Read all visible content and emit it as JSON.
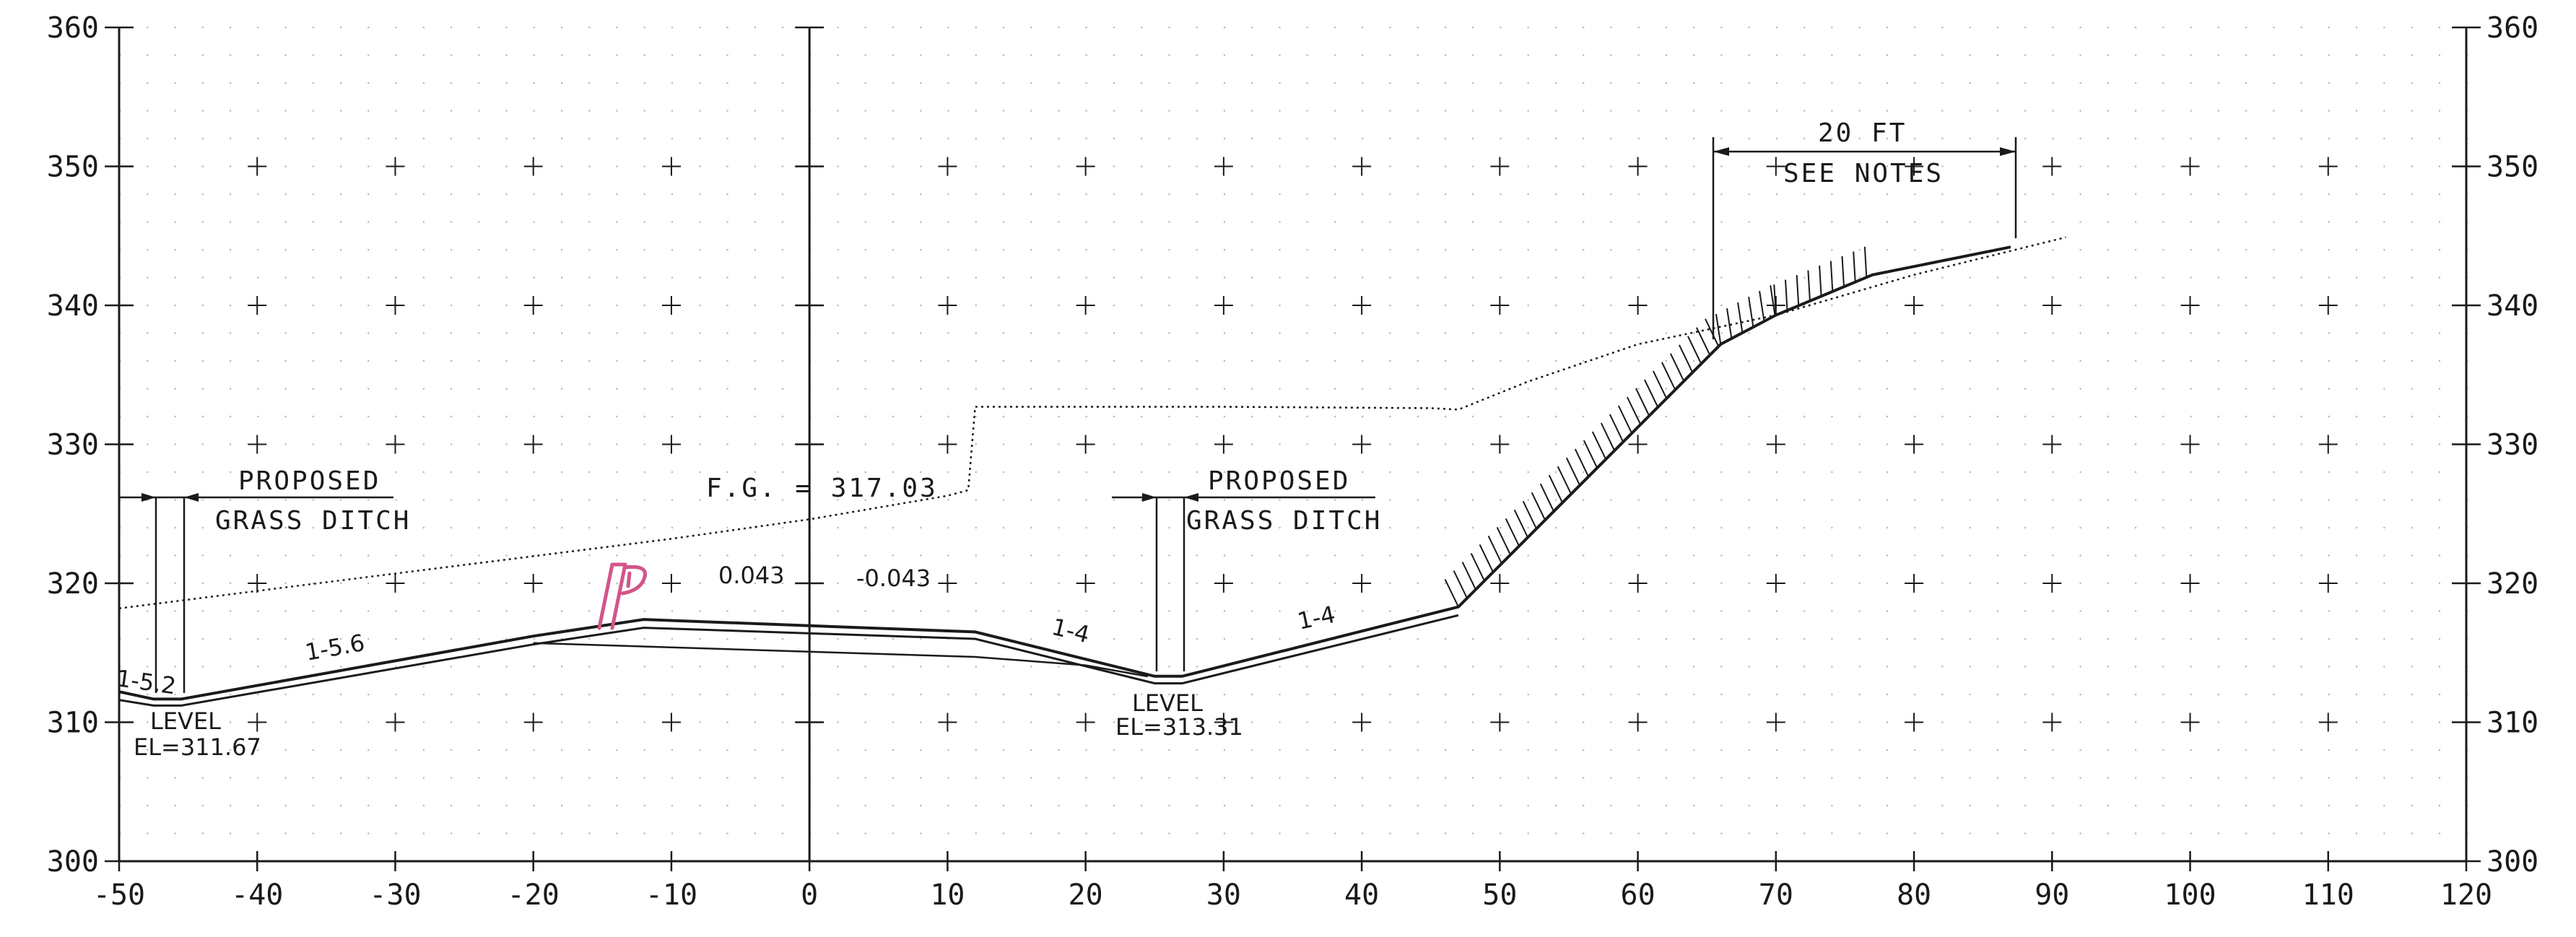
{
  "axes": {
    "x_ticks": [
      "-50",
      "-40",
      "-30",
      "-20",
      "-10",
      "0",
      "10",
      "20",
      "30",
      "40",
      "50",
      "60",
      "70",
      "80",
      "90",
      "100",
      "110",
      "120"
    ],
    "y_ticks": [
      "300",
      "310",
      "320",
      "330",
      "340",
      "350",
      "360"
    ],
    "x_range": [
      -50,
      120
    ],
    "y_range": [
      300,
      360
    ],
    "grid": "dotted"
  },
  "colors": {
    "line": "#1a1a1a",
    "grid_dot": "#b8b8b8",
    "markup": "#d2558a"
  },
  "annotations": {
    "left_ditch_title": "PROPOSED",
    "left_ditch_subtitle": "GRASS DITCH",
    "right_ditch_title": "PROPOSED",
    "right_ditch_subtitle": "GRASS DITCH",
    "fg_label": "F.G. = 317.03",
    "slope_left_ditch": "1-5.2",
    "slope_left": "1-5.6",
    "cross_slope_left": "0.043",
    "cross_slope_right": "-0.043",
    "slope_ditch_in": "1-4",
    "slope_ditch_out": "1-4",
    "left_level": "LEVEL",
    "left_elevation": "EL=311.67",
    "right_level": "LEVEL",
    "right_elevation": "EL=313.31",
    "dim_width": "20 FT",
    "dim_note": "SEE NOTES"
  },
  "markup_icon": "flag-icon",
  "profiles": {
    "existing_ground": [
      [
        -50,
        318.2
      ],
      [
        -30,
        320.7
      ],
      [
        -10,
        323.2
      ],
      [
        0,
        324.6
      ],
      [
        10,
        326.3
      ],
      [
        11.5,
        326.7
      ],
      [
        12,
        332.7
      ],
      [
        30,
        332.7
      ],
      [
        45,
        332.6
      ],
      [
        47,
        332.5
      ],
      [
        52,
        334.5
      ],
      [
        60,
        337.2
      ],
      [
        70,
        339.3
      ],
      [
        80,
        342.2
      ],
      [
        91,
        344.9
      ]
    ],
    "proposed_top": [
      [
        -50,
        312.2
      ],
      [
        -47.5,
        311.67
      ],
      [
        -45.5,
        311.67
      ],
      [
        -20,
        316.2
      ],
      [
        -12,
        317.4
      ],
      [
        12,
        316.5
      ],
      [
        25,
        313.31
      ],
      [
        27,
        313.31
      ],
      [
        47,
        318.3
      ],
      [
        66,
        337.2
      ],
      [
        70,
        339.3
      ],
      [
        77,
        342.2
      ],
      [
        87,
        344.2
      ]
    ],
    "proposed_bottom": [
      [
        -50,
        311.6
      ],
      [
        -47.5,
        311.2
      ],
      [
        -45.5,
        311.2
      ],
      [
        -20,
        315.6
      ],
      [
        -12,
        316.8
      ],
      [
        12,
        316.0
      ],
      [
        25,
        312.8
      ],
      [
        27,
        312.8
      ],
      [
        47,
        317.7
      ]
    ],
    "subgrade": [
      [
        -20,
        315.7
      ],
      [
        12,
        314.7
      ],
      [
        20,
        314.1
      ],
      [
        24.5,
        313.3
      ]
    ]
  }
}
